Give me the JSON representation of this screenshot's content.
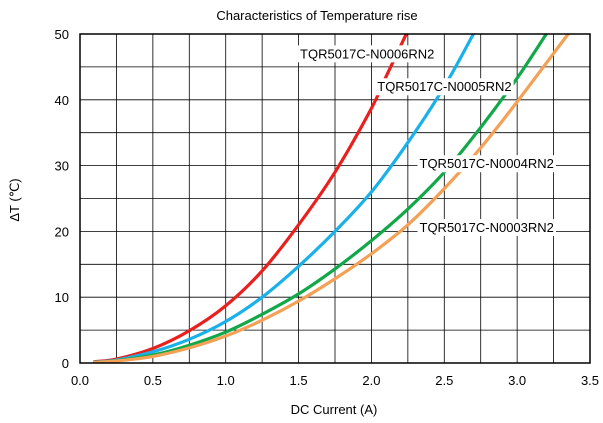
{
  "chart_data": {
    "type": "line",
    "title": "Characteristics of Temperature rise",
    "xlabel": "DC Current (A)",
    "ylabel": "ΔT (℃)",
    "xlim": [
      0,
      3.5
    ],
    "ylim": [
      0,
      50
    ],
    "x_ticks": [
      "0.0",
      "0.5",
      "1.0",
      "1.5",
      "2.0",
      "2.5",
      "3.0",
      "3.5"
    ],
    "y_ticks": [
      "0",
      "10",
      "20",
      "30",
      "40",
      "50"
    ],
    "x_grid_step": 0.25,
    "y_grid_step": 5,
    "grid": true,
    "legend": "inline labels",
    "series": [
      {
        "name": "TQR5017C-N0006RN2",
        "color": "#e8201e",
        "x": [
          0.1,
          0.25,
          0.5,
          0.75,
          1.0,
          1.25,
          1.5,
          1.75,
          2.0,
          2.1,
          2.25
        ],
        "y": [
          0.2,
          0.6,
          2.2,
          4.9,
          8.7,
          14.0,
          21.0,
          29.0,
          38.7,
          43.5,
          50.5
        ]
      },
      {
        "name": "TQR5017C-N0005RN2",
        "color": "#1ab0ea",
        "x": [
          0.1,
          0.25,
          0.5,
          0.75,
          1.0,
          1.25,
          1.5,
          1.75,
          2.0,
          2.25,
          2.5,
          2.7
        ],
        "y": [
          0.15,
          0.45,
          1.7,
          3.6,
          6.3,
          10.0,
          14.7,
          20.0,
          26.0,
          33.5,
          42.0,
          50.0
        ]
      },
      {
        "name": "TQR5017C-N0004RN2",
        "color": "#12a84a",
        "x": [
          0.1,
          0.25,
          0.5,
          0.75,
          1.0,
          1.25,
          1.5,
          1.75,
          2.0,
          2.25,
          2.5,
          2.75,
          3.0,
          3.2
        ],
        "y": [
          0.1,
          0.35,
          1.2,
          2.7,
          4.7,
          7.4,
          10.5,
          14.3,
          18.6,
          23.4,
          29.0,
          35.8,
          43.3,
          50.0
        ]
      },
      {
        "name": "TQR5017C-N0003RN2",
        "color": "#f4a055",
        "x": [
          0.1,
          0.25,
          0.5,
          0.75,
          1.0,
          1.25,
          1.5,
          1.75,
          2.0,
          2.25,
          2.5,
          2.75,
          3.0,
          3.35
        ],
        "y": [
          0.1,
          0.3,
          1.0,
          2.3,
          4.1,
          6.5,
          9.4,
          12.8,
          16.6,
          21.0,
          26.5,
          32.7,
          39.7,
          50.0
        ]
      }
    ],
    "labels": [
      {
        "text": "TQR5017C-N0006RN2",
        "x": 1.51,
        "y": 46.3
      },
      {
        "text": "TQR5017C-N0005RN2",
        "x": 2.04,
        "y": 41.3
      },
      {
        "text": "TQR5017C-N0004RN2",
        "x": 2.33,
        "y": 29.6
      },
      {
        "text": "TQR5017C-N0003RN2",
        "x": 2.33,
        "y": 19.9
      }
    ]
  }
}
